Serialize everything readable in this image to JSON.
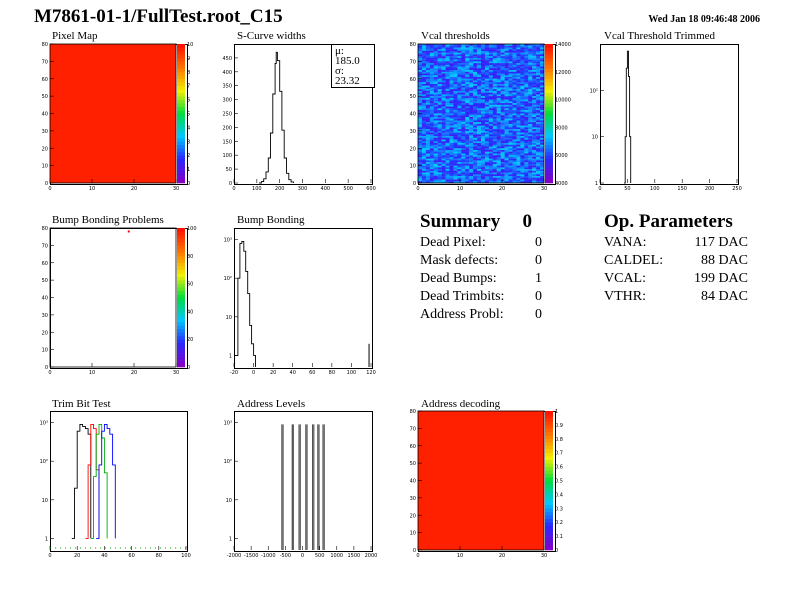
{
  "page": {
    "title": "M7861-01-1/FullTest.root_C15",
    "date": "Wed Jan 18 09:46:48 2006"
  },
  "colors": {
    "red": "#ff2000",
    "blue": "#3050f0"
  },
  "summary": {
    "title": "Summary",
    "total": "0",
    "rows": [
      {
        "label": "Dead Pixel:",
        "value": "0"
      },
      {
        "label": "Mask defects:",
        "value": "0"
      },
      {
        "label": "Dead Bumps:",
        "value": "1"
      },
      {
        "label": "Dead Trimbits:",
        "value": "0"
      },
      {
        "label": "Address Probl:",
        "value": "0"
      }
    ]
  },
  "op_params": {
    "title": "Op. Parameters",
    "rows": [
      {
        "label": "VANA:",
        "value": "117 DAC"
      },
      {
        "label": "CALDEL:",
        "value": "88 DAC"
      },
      {
        "label": "VCAL:",
        "value": "199 DAC"
      },
      {
        "label": "VTHR:",
        "value": "84 DAC"
      }
    ]
  },
  "chart_data": [
    {
      "id": "pixel_map",
      "type": "heatmap",
      "title": "Pixel Map",
      "xlim": [
        0,
        32
      ],
      "ylim": [
        0,
        80
      ],
      "xticks": [
        "0",
        "10",
        "20",
        "30"
      ],
      "yticks": [
        "0",
        "10",
        "20",
        "30",
        "40",
        "50",
        "60",
        "70",
        "80"
      ],
      "zticks": [
        "0",
        "1",
        "2",
        "3",
        "4",
        "5",
        "6",
        "7",
        "8",
        "9",
        "10"
      ],
      "fill": "uniform",
      "value": 10
    },
    {
      "id": "scurve_widths",
      "type": "line",
      "title": "S-Curve widths",
      "xlim": [
        0,
        600
      ],
      "ylim": [
        0,
        500
      ],
      "log_y": false,
      "xticks": [
        "0",
        "100",
        "200",
        "300",
        "400",
        "500",
        "600"
      ],
      "yticks": [
        "0",
        "50",
        "100",
        "150",
        "200",
        "250",
        "300",
        "350",
        "400",
        "450"
      ],
      "stats": {
        "mean": "185.0",
        "sigma": "23.32"
      },
      "x": [
        110,
        120,
        130,
        140,
        150,
        160,
        170,
        180,
        185,
        190,
        200,
        210,
        220,
        230,
        240,
        250,
        260
      ],
      "y": [
        0,
        5,
        15,
        40,
        90,
        180,
        320,
        430,
        470,
        440,
        330,
        190,
        90,
        35,
        12,
        4,
        0
      ]
    },
    {
      "id": "vcal_thresholds",
      "type": "heatmap",
      "title": "Vcal thresholds",
      "xlim": [
        0,
        32
      ],
      "ylim": [
        0,
        80
      ],
      "xticks": [
        "0",
        "10",
        "20",
        "30"
      ],
      "yticks": [
        "0",
        "10",
        "20",
        "30",
        "40",
        "50",
        "60",
        "70",
        "80"
      ],
      "zticks": [
        "4000",
        "6000",
        "8000",
        "10000",
        "12000",
        "14000"
      ],
      "fill": "noise-blue"
    },
    {
      "id": "vcal_threshold_trimmed",
      "type": "line",
      "title": "Vcal Threshold Trimmed",
      "xlim": [
        0,
        250
      ],
      "log_y": true,
      "ylim": [
        1,
        1000
      ],
      "xticks": [
        "0",
        "50",
        "100",
        "150",
        "200",
        "250"
      ],
      "yticks": [
        "1",
        "10",
        "10²"
      ],
      "x": [
        44,
        46,
        48,
        50,
        52,
        54,
        56
      ],
      "y": [
        1,
        10,
        300,
        700,
        200,
        10,
        1
      ]
    },
    {
      "id": "bump_bonding_problems",
      "type": "heatmap",
      "title": "Bump Bonding Problems",
      "xlim": [
        0,
        32
      ],
      "ylim": [
        0,
        80
      ],
      "xticks": [
        "0",
        "10",
        "20",
        "30"
      ],
      "yticks": [
        "0",
        "10",
        "20",
        "30",
        "40",
        "50",
        "60",
        "70",
        "80"
      ],
      "zticks": [
        "0",
        "20",
        "40",
        "60",
        "80",
        "100"
      ],
      "points": [
        {
          "x": 20,
          "y": 78
        }
      ]
    },
    {
      "id": "bump_bonding",
      "type": "line",
      "title": "Bump Bonding",
      "xlim": [
        -20,
        120
      ],
      "log_y": true,
      "ylim": [
        0.5,
        2000
      ],
      "xticks": [
        "-20",
        "0",
        "20",
        "40",
        "60",
        "80",
        "100",
        "120"
      ],
      "yticks": [
        "1",
        "10",
        "10²",
        "10³"
      ],
      "x": [
        -20,
        -16,
        -14,
        -12,
        -10,
        -8,
        -6,
        -4,
        -2,
        0,
        2
      ],
      "y": [
        1,
        100,
        800,
        900,
        500,
        150,
        40,
        6,
        2,
        1,
        0.5
      ],
      "outlier": {
        "x": 118,
        "y": 2
      }
    },
    {
      "id": "trim_bit_test",
      "type": "line",
      "title": "Trim Bit Test",
      "xlim": [
        0,
        100
      ],
      "log_y": true,
      "ylim": [
        0.5,
        2000
      ],
      "xticks": [
        "0",
        "20",
        "40",
        "60",
        "80",
        "100"
      ],
      "yticks": [
        "1",
        "10",
        "10²",
        "10³"
      ],
      "series": [
        {
          "color": "#000000",
          "x": [
            16,
            18,
            20,
            22,
            24,
            26,
            28,
            30
          ],
          "y": [
            1,
            20,
            600,
            900,
            800,
            700,
            500,
            1
          ]
        },
        {
          "color": "#ff0000",
          "x": [
            26,
            28,
            30,
            32,
            34,
            36
          ],
          "y": [
            1,
            80,
            900,
            700,
            60,
            1
          ]
        },
        {
          "color": "#00aa00",
          "x": [
            30,
            32,
            34,
            36,
            38,
            40,
            42
          ],
          "y": [
            1,
            40,
            500,
            900,
            400,
            50,
            1
          ]
        },
        {
          "color": "#0000ff",
          "x": [
            34,
            36,
            38,
            40,
            42,
            44,
            46,
            48
          ],
          "y": [
            1,
            80,
            600,
            900,
            700,
            500,
            80,
            1
          ]
        }
      ]
    },
    {
      "id": "address_levels",
      "type": "line",
      "title": "Address Levels",
      "xlim": [
        -2000,
        2000
      ],
      "log_y": true,
      "ylim": [
        0.5,
        2000
      ],
      "xticks": [
        "-2000",
        "-1500",
        "-1000",
        "-500",
        "0",
        "500",
        "1000",
        "1500",
        "2000"
      ],
      "yticks": [
        "1",
        "10",
        "10²",
        "10³"
      ],
      "peaks": [
        -600,
        -300,
        -100,
        100,
        300,
        450,
        600
      ]
    },
    {
      "id": "address_decoding",
      "type": "heatmap",
      "title": "Address decoding",
      "xlim": [
        0,
        32
      ],
      "ylim": [
        0,
        80
      ],
      "xticks": [
        "0",
        "10",
        "20",
        "30"
      ],
      "yticks": [
        "0",
        "10",
        "20",
        "30",
        "40",
        "50",
        "60",
        "70",
        "80"
      ],
      "zticks": [
        "0",
        "0.1",
        "0.2",
        "0.3",
        "0.4",
        "0.5",
        "0.6",
        "0.7",
        "0.8",
        "0.9",
        "1"
      ],
      "fill": "uniform",
      "value": 1
    }
  ]
}
